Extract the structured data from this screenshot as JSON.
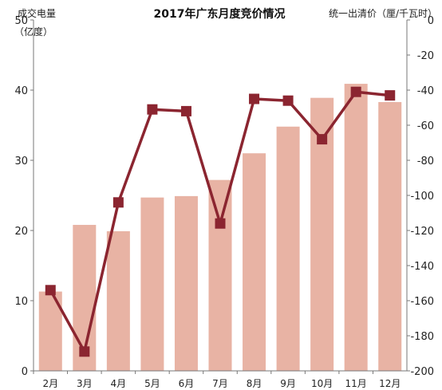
{
  "chart_data": {
    "type": "bar+line",
    "title": "2017年广东月度竞价情况",
    "categories": [
      "2月",
      "3月",
      "4月",
      "5月",
      "6月",
      "7月",
      "8月",
      "9月",
      "10月",
      "11月",
      "12月"
    ],
    "series": [
      {
        "name": "成交电量",
        "type": "bar",
        "axis": "left",
        "values": [
          11.3,
          20.8,
          19.9,
          24.7,
          24.9,
          27.2,
          31.0,
          34.8,
          38.9,
          40.9,
          38.3
        ]
      },
      {
        "name": "统一出清价",
        "type": "line",
        "axis": "right",
        "values": [
          -154,
          -189,
          -104,
          -51,
          -52,
          -116,
          -45,
          -46,
          -68,
          -41,
          -43
        ]
      }
    ],
    "left_axis": {
      "label_line1": "成交电量",
      "label_line2": "（亿度）",
      "ylim": [
        0,
        50
      ],
      "ticks": [
        0,
        10,
        20,
        30,
        40,
        50
      ]
    },
    "right_axis": {
      "label": "统一出清价（厘/千瓦时）",
      "ylim": [
        -200,
        0
      ],
      "ticks": [
        0,
        -20,
        -40,
        -60,
        -80,
        -100,
        -120,
        -140,
        -160,
        -180,
        -200
      ]
    },
    "grid": false,
    "colors": {
      "bar": "#e8b3a4",
      "line": "#8b2530",
      "marker": "#8b2530",
      "axis": "#777777"
    }
  }
}
